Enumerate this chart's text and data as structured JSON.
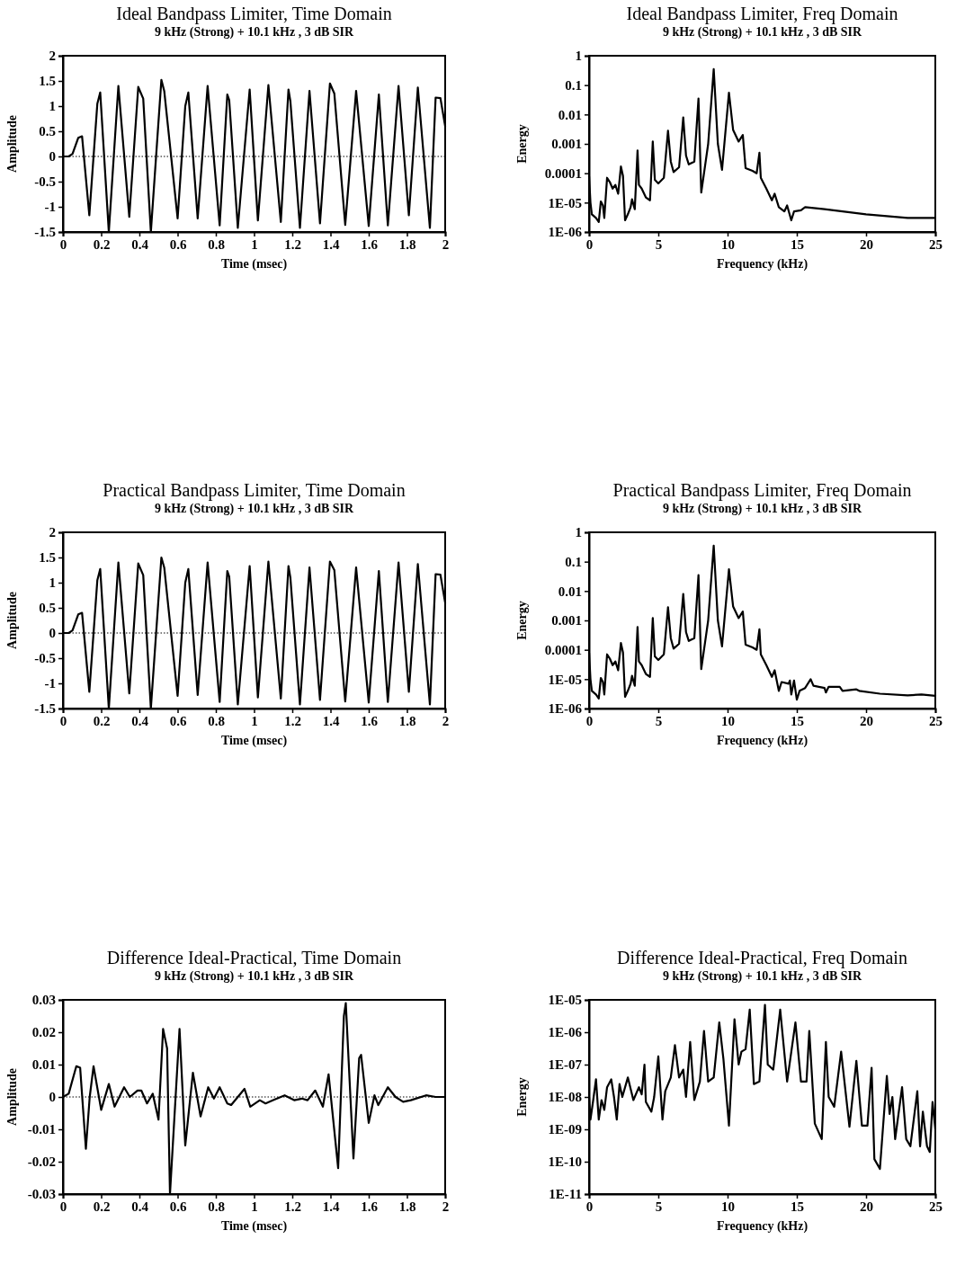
{
  "chart_data": [
    {
      "type": "line",
      "title": "Ideal Bandpass Limiter, Time Domain",
      "subtitle": "9 kHz (Strong) + 10.1 kHz , 3 dB SIR",
      "xlabel": "Time (msec)",
      "ylabel": "Amplitude",
      "xlim": [
        0,
        2
      ],
      "ylim": [
        -1.5,
        2
      ],
      "xticks": [
        0,
        0.2,
        0.4,
        0.6,
        0.8,
        1,
        1.2,
        1.4,
        1.6,
        1.8,
        2
      ],
      "yticks": [
        -1.5,
        -1,
        -0.5,
        0,
        0.5,
        1,
        1.5,
        2
      ],
      "ref_lines": [
        {
          "axis": "y",
          "value": 0,
          "line_style": "dotted"
        }
      ],
      "series": [
        {
          "color": "#000000",
          "x": [
            0,
            0.03,
            0.05,
            0.08,
            0.1,
            0.138,
            0.18,
            0.195,
            0.24,
            0.29,
            0.347,
            0.394,
            0.42,
            0.46,
            0.515,
            0.53,
            0.6,
            0.64,
            0.656,
            0.705,
            0.757,
            0.82,
            0.86,
            0.87,
            0.915,
            0.977,
            1.02,
            1.075,
            1.14,
            1.18,
            1.19,
            1.24,
            1.29,
            1.345,
            1.397,
            1.42,
            1.477,
            1.534,
            1.6,
            1.653,
            1.7,
            1.756,
            1.81,
            1.857,
            1.92,
            1.95,
            1.975,
            2
          ],
          "values": [
            0,
            0,
            0.05,
            0.37,
            0.4,
            -1.17,
            1.05,
            1.27,
            -1.5,
            1.4,
            -1.2,
            1.38,
            1.15,
            -1.5,
            1.52,
            1.3,
            -1.23,
            1.0,
            1.27,
            -1.23,
            1.4,
            -1.37,
            1.23,
            1.12,
            -1.42,
            1.33,
            -1.27,
            1.42,
            -1.3,
            1.33,
            1.1,
            -1.42,
            1.3,
            -1.33,
            1.45,
            1.25,
            -1.36,
            1.3,
            -1.38,
            1.23,
            -1.37,
            1.4,
            -1.17,
            1.37,
            -1.42,
            1.17,
            1.16,
            0.6
          ]
        }
      ]
    },
    {
      "type": "line",
      "title": "Ideal Bandpass Limiter, Freq Domain",
      "subtitle": "9 kHz (Strong) + 10.1 kHz , 3 dB SIR",
      "xlabel": "Frequency (kHz)",
      "ylabel": "Energy",
      "log": "y",
      "xlim": [
        0,
        25
      ],
      "ylim": [
        1e-06,
        1
      ],
      "xticks": [
        0,
        5,
        10,
        15,
        20,
        25
      ],
      "yticks": [
        {
          "value": 1e-06,
          "label": "1E-06"
        },
        {
          "value": 1e-05,
          "label": "1E-05"
        },
        0.0001,
        0.001,
        0.01,
        0.1,
        1
      ],
      "series": [
        {
          "color": "#000000",
          "x": [
            0,
            0.1,
            0.2,
            0.5,
            0.7,
            0.85,
            1.0,
            1.1,
            1.3,
            1.5,
            1.7,
            1.9,
            2.1,
            2.3,
            2.45,
            2.6,
            2.8,
            3.0,
            3.1,
            3.3,
            3.5,
            3.6,
            3.8,
            4.1,
            4.4,
            4.6,
            4.75,
            5.0,
            5.4,
            5.7,
            5.9,
            6.1,
            6.5,
            6.8,
            7.0,
            7.2,
            7.6,
            7.9,
            8.1,
            8.3,
            8.6,
            9.0,
            9.3,
            9.6,
            10.1,
            10.4,
            10.8,
            11.1,
            11.3,
            11.8,
            12.1,
            12.3,
            12.4,
            12.8,
            13.2,
            13.4,
            13.7,
            14.1,
            14.3,
            14.6,
            14.8,
            15.3,
            15.6,
            17,
            20,
            23,
            25
          ],
          "values": [
            8e-05,
            1e-05,
            4e-06,
            3e-06,
            2.2e-06,
            1.1e-05,
            8e-06,
            3e-06,
            7e-05,
            5e-05,
            3e-05,
            4e-05,
            2e-05,
            0.00017,
            8e-05,
            2.5e-06,
            4e-06,
            7e-06,
            1.3e-05,
            6e-06,
            0.0006,
            4e-05,
            3e-05,
            1.5e-05,
            1.2e-05,
            0.0012,
            6e-05,
            4.5e-05,
            7e-05,
            0.0028,
            0.00025,
            0.00011,
            0.00016,
            0.008,
            0.0004,
            0.0002,
            0.00025,
            0.035,
            2.2e-05,
            0.0001,
            0.001,
            0.35,
            0.001,
            0.00013,
            0.055,
            0.003,
            0.0012,
            0.002,
            0.00015,
            0.00012,
            0.0001,
            0.0005,
            7e-05,
            3e-05,
            1.2e-05,
            2e-05,
            7e-06,
            5e-06,
            8e-06,
            2.5e-06,
            5e-06,
            5.5e-06,
            7e-06,
            6e-06,
            4e-06,
            3e-06,
            3e-06
          ]
        }
      ]
    },
    {
      "type": "line",
      "title": "Practical Bandpass Limiter, Time Domain",
      "subtitle": "9 kHz (Strong) + 10.1 kHz , 3 dB SIR",
      "xlabel": "Time (msec)",
      "ylabel": "Amplitude",
      "xlim": [
        0,
        2
      ],
      "ylim": [
        -1.5,
        2
      ],
      "xticks": [
        0,
        0.2,
        0.4,
        0.6,
        0.8,
        1,
        1.2,
        1.4,
        1.6,
        1.8,
        2
      ],
      "yticks": [
        -1.5,
        -1,
        -0.5,
        0,
        0.5,
        1,
        1.5,
        2
      ],
      "ref_lines": [
        {
          "axis": "y",
          "value": 0,
          "line_style": "dotted"
        }
      ],
      "series": [
        {
          "color": "#000000",
          "x": [
            0,
            0.03,
            0.05,
            0.08,
            0.1,
            0.138,
            0.18,
            0.195,
            0.24,
            0.29,
            0.347,
            0.394,
            0.42,
            0.46,
            0.515,
            0.53,
            0.6,
            0.64,
            0.656,
            0.705,
            0.757,
            0.82,
            0.86,
            0.87,
            0.915,
            0.977,
            1.02,
            1.075,
            1.14,
            1.18,
            1.19,
            1.24,
            1.29,
            1.345,
            1.397,
            1.42,
            1.477,
            1.534,
            1.6,
            1.653,
            1.7,
            1.756,
            1.81,
            1.857,
            1.92,
            1.95,
            1.975,
            2
          ],
          "values": [
            0,
            0,
            0.05,
            0.37,
            0.4,
            -1.17,
            1.05,
            1.27,
            -1.5,
            1.4,
            -1.2,
            1.38,
            1.15,
            -1.5,
            1.5,
            1.3,
            -1.25,
            1.0,
            1.27,
            -1.23,
            1.4,
            -1.37,
            1.23,
            1.12,
            -1.42,
            1.33,
            -1.28,
            1.42,
            -1.3,
            1.33,
            1.1,
            -1.42,
            1.3,
            -1.33,
            1.42,
            1.25,
            -1.36,
            1.3,
            -1.38,
            1.23,
            -1.37,
            1.4,
            -1.17,
            1.37,
            -1.42,
            1.17,
            1.16,
            0.6
          ]
        }
      ]
    },
    {
      "type": "line",
      "title": "Practical Bandpass Limiter, Freq Domain",
      "subtitle": "9 kHz (Strong) + 10.1 kHz , 3 dB SIR",
      "xlabel": "Frequency (kHz)",
      "ylabel": "Energy",
      "log": "y",
      "xlim": [
        0,
        25
      ],
      "ylim": [
        1e-06,
        1
      ],
      "xticks": [
        0,
        5,
        10,
        15,
        20,
        25
      ],
      "yticks": [
        {
          "value": 1e-06,
          "label": "1E-06"
        },
        {
          "value": 1e-05,
          "label": "1E-05"
        },
        0.0001,
        0.001,
        0.01,
        0.1,
        1
      ],
      "series": [
        {
          "color": "#000000",
          "x": [
            0,
            0.1,
            0.2,
            0.5,
            0.7,
            0.85,
            1.0,
            1.1,
            1.3,
            1.5,
            1.7,
            1.9,
            2.1,
            2.3,
            2.45,
            2.6,
            2.8,
            3.0,
            3.1,
            3.3,
            3.5,
            3.6,
            3.8,
            4.1,
            4.4,
            4.6,
            4.75,
            5.0,
            5.4,
            5.7,
            5.9,
            6.1,
            6.5,
            6.8,
            7.0,
            7.2,
            7.6,
            7.9,
            8.1,
            8.3,
            8.6,
            9.0,
            9.3,
            9.6,
            10.1,
            10.4,
            10.8,
            11.1,
            11.3,
            11.8,
            12.1,
            12.3,
            12.4,
            12.8,
            13.2,
            13.4,
            13.7,
            13.9,
            14.4,
            14.5,
            14.6,
            14.8,
            15,
            15.2,
            15.6,
            16,
            16.2,
            17,
            17.1,
            17.3,
            18.1,
            18.3,
            19.3,
            19.5,
            21,
            23,
            24,
            25
          ],
          "values": [
            8e-05,
            1e-05,
            4e-06,
            3e-06,
            2.2e-06,
            1.1e-05,
            8e-06,
            3e-06,
            7e-05,
            5e-05,
            3e-05,
            4e-05,
            2e-05,
            0.00017,
            8e-05,
            2.5e-06,
            4e-06,
            7e-06,
            1.3e-05,
            6e-06,
            0.0006,
            4e-05,
            3e-05,
            1.5e-05,
            1.2e-05,
            0.0012,
            6e-05,
            4.5e-05,
            7e-05,
            0.0028,
            0.00025,
            0.00011,
            0.00016,
            0.008,
            0.0004,
            0.0002,
            0.00025,
            0.035,
            2.2e-05,
            0.0001,
            0.001,
            0.35,
            0.001,
            0.00013,
            0.055,
            0.003,
            0.0012,
            0.002,
            0.00015,
            0.00012,
            0.0001,
            0.0005,
            7e-05,
            3e-05,
            1.2e-05,
            2e-05,
            4e-06,
            8e-06,
            7e-06,
            9e-06,
            3e-06,
            9e-06,
            2e-06,
            4e-06,
            5e-06,
            1e-05,
            6e-06,
            5e-06,
            3.5e-06,
            5.5e-06,
            5.5e-06,
            4e-06,
            4.5e-06,
            4e-06,
            3.2e-06,
            2.8e-06,
            3e-06,
            2.7e-06
          ]
        }
      ]
    },
    {
      "type": "line",
      "title": "Difference Ideal-Practical, Time Domain",
      "subtitle": "9 kHz (Strong) + 10.1 kHz , 3 dB SIR",
      "xlabel": "Time (msec)",
      "ylabel": "Amplitude",
      "xlim": [
        0,
        2
      ],
      "ylim": [
        -0.03,
        0.03
      ],
      "xticks": [
        0,
        0.2,
        0.4,
        0.6,
        0.8,
        1,
        1.2,
        1.4,
        1.6,
        1.8,
        2
      ],
      "yticks": [
        -0.03,
        -0.02,
        -0.01,
        0,
        0.01,
        0.02,
        0.03
      ],
      "ref_lines": [
        {
          "axis": "y",
          "value": 0,
          "line_style": "dotted"
        }
      ],
      "series": [
        {
          "color": "#000000",
          "x": [
            0,
            0.03,
            0.07,
            0.09,
            0.12,
            0.14,
            0.16,
            0.2,
            0.24,
            0.27,
            0.32,
            0.35,
            0.39,
            0.41,
            0.44,
            0.47,
            0.5,
            0.524,
            0.545,
            0.56,
            0.61,
            0.64,
            0.68,
            0.72,
            0.76,
            0.79,
            0.82,
            0.86,
            0.88,
            0.95,
            0.98,
            1.03,
            1.06,
            1.1,
            1.16,
            1.21,
            1.25,
            1.28,
            1.32,
            1.36,
            1.39,
            1.44,
            1.47,
            1.48,
            1.52,
            1.55,
            1.56,
            1.6,
            1.63,
            1.65,
            1.7,
            1.74,
            1.78,
            1.82,
            1.9,
            1.95,
            2
          ],
          "values": [
            0,
            0.001,
            0.0095,
            0.009,
            -0.016,
            0,
            0.0095,
            -0.004,
            0.004,
            -0.003,
            0.003,
            0,
            0.002,
            0.002,
            -0.002,
            0.001,
            -0.007,
            0.021,
            0.015,
            -0.03,
            0.021,
            -0.015,
            0.0075,
            -0.006,
            0.003,
            -0.0005,
            0.003,
            -0.002,
            -0.0025,
            0.0025,
            -0.003,
            -0.001,
            -0.002,
            -0.001,
            0.0005,
            -0.001,
            -0.0005,
            -0.001,
            0.002,
            -0.003,
            0.007,
            -0.022,
            0.025,
            0.029,
            -0.019,
            0.012,
            0.013,
            -0.008,
            0.0005,
            -0.0025,
            0.003,
            0,
            -0.0015,
            -0.001,
            0.0005,
            0,
            0
          ]
        }
      ]
    },
    {
      "type": "line",
      "title": "Difference Ideal-Practical, Freq Domain",
      "subtitle": "9 kHz (Strong) + 10.1 kHz , 3 dB SIR",
      "xlabel": "Frequency (kHz)",
      "ylabel": "Energy",
      "log": "y",
      "xlim": [
        0,
        25
      ],
      "ylim": [
        1e-11,
        1e-05
      ],
      "xticks": [
        0,
        5,
        10,
        15,
        20,
        25
      ],
      "yticks": [
        {
          "value": 1e-11,
          "label": "1E-11"
        },
        {
          "value": 1e-10,
          "label": "1E-10"
        },
        {
          "value": 1e-09,
          "label": "1E-09"
        },
        {
          "value": 1e-08,
          "label": "1E-08"
        },
        {
          "value": 1e-07,
          "label": "1E-07"
        },
        {
          "value": 1e-06,
          "label": "1E-06"
        },
        {
          "value": 1e-05,
          "label": "1E-05"
        }
      ],
      "series": [
        {
          "color": "#000000",
          "x": [
            0,
            0.1,
            0.3,
            0.5,
            0.7,
            0.9,
            1.1,
            1.3,
            1.6,
            1.8,
            2.0,
            2.2,
            2.4,
            2.8,
            3.2,
            3.6,
            3.8,
            4.0,
            4.1,
            4.5,
            4.7,
            5.0,
            5.3,
            5.5,
            5.9,
            6.2,
            6.5,
            6.8,
            7.0,
            7.3,
            7.6,
            8.0,
            8.3,
            8.6,
            9.0,
            9.4,
            9.7,
            10.1,
            10.5,
            10.8,
            11.0,
            11.3,
            11.6,
            11.9,
            12.3,
            12.7,
            12.9,
            13.3,
            13.8,
            14.3,
            14.9,
            15.3,
            15.7,
            15.9,
            16.3,
            16.8,
            17.1,
            17.3,
            17.7,
            18.2,
            18.8,
            19.3,
            19.7,
            20.1,
            20.4,
            20.6,
            21.0,
            21.5,
            21.7,
            21.9,
            22.1,
            22.6,
            22.9,
            23.2,
            23.7,
            23.9,
            24.1,
            24.4,
            24.6,
            24.8,
            25.0
          ],
          "values": [
            1e-08,
            2e-09,
            8e-09,
            3.5e-08,
            2e-09,
            8e-09,
            4e-09,
            2e-08,
            3.5e-08,
            1e-08,
            2e-09,
            2.5e-08,
            1e-08,
            4e-08,
            8e-09,
            2e-08,
            1.2e-08,
            1e-07,
            7e-09,
            3.5e-09,
            1e-08,
            1.8e-07,
            2e-09,
            1.5e-08,
            4e-08,
            4e-07,
            4e-08,
            7e-08,
            1e-08,
            5e-07,
            8e-09,
            3e-08,
            1.1e-06,
            3e-08,
            4e-08,
            2e-06,
            1.5e-07,
            1.3e-09,
            2.5e-06,
            1e-07,
            2.5e-07,
            3e-07,
            5e-06,
            2.5e-08,
            3e-08,
            7e-06,
            1e-07,
            7e-08,
            5e-06,
            3e-08,
            2e-06,
            3e-08,
            3e-08,
            1.1e-06,
            1.5e-09,
            5e-10,
            5e-07,
            1e-08,
            5e-09,
            2.5e-07,
            1.2e-09,
            1.3e-07,
            1.3e-09,
            1.3e-09,
            8e-08,
            1.2e-10,
            6e-11,
            4.5e-08,
            3e-09,
            1e-08,
            5e-10,
            2e-08,
            5e-10,
            3e-10,
            1.5e-08,
            3e-10,
            3.5e-09,
            3e-10,
            2e-10,
            7e-09,
            1e-09
          ]
        }
      ]
    }
  ]
}
